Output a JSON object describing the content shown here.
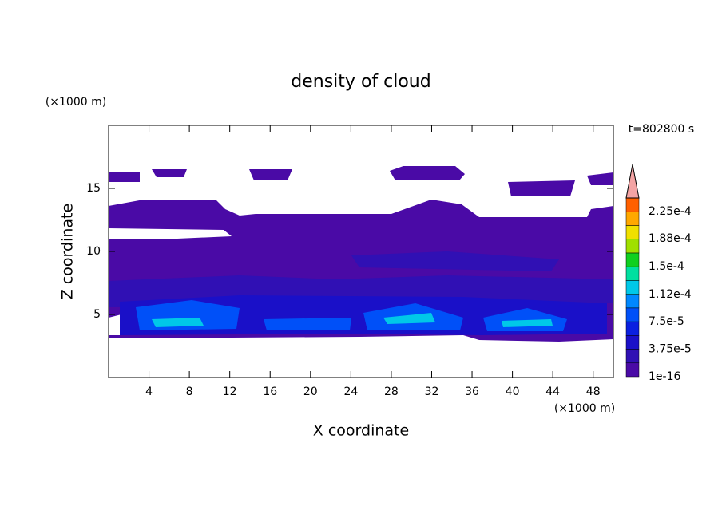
{
  "chart_data": {
    "type": "contour",
    "title": "density of cloud",
    "xlabel": "X coordinate",
    "ylabel": "Z coordinate",
    "x_unit": "(×1000 m)",
    "y_unit": "(×1000 m)",
    "time_label": "t=802800 s",
    "xlim": [
      0,
      50
    ],
    "ylim": [
      0,
      20
    ],
    "xticks": [
      4,
      8,
      12,
      16,
      20,
      24,
      28,
      32,
      36,
      40,
      44,
      48
    ],
    "yticks": [
      5,
      10,
      15
    ],
    "colorbar": {
      "clim": [
        1e-16,
        0.00024375
      ],
      "ticks": [
        1e-16,
        {
          "value": 3.75e-05,
          "label": "3.75e-5"
        },
        {
          "value": 7.5e-05,
          "label": "7.5e-5"
        },
        {
          "value": 0.000112,
          "label": "1.12e-4"
        },
        {
          "value": 0.00015,
          "label": "1.5e-4"
        },
        {
          "value": 0.000188,
          "label": "1.88e-4"
        },
        {
          "value": 0.000225,
          "label": "2.25e-4"
        }
      ],
      "colors": [
        "#4a0aa6",
        "#3010b4",
        "#1a10c8",
        "#0a20e0",
        "#0050f8",
        "#0088ff",
        "#00c8e8",
        "#00e0a0",
        "#10d020",
        "#a0e000",
        "#f0e000",
        "#ffa800",
        "#ff6000"
      ],
      "extend_color": "#f4a4a4"
    }
  }
}
